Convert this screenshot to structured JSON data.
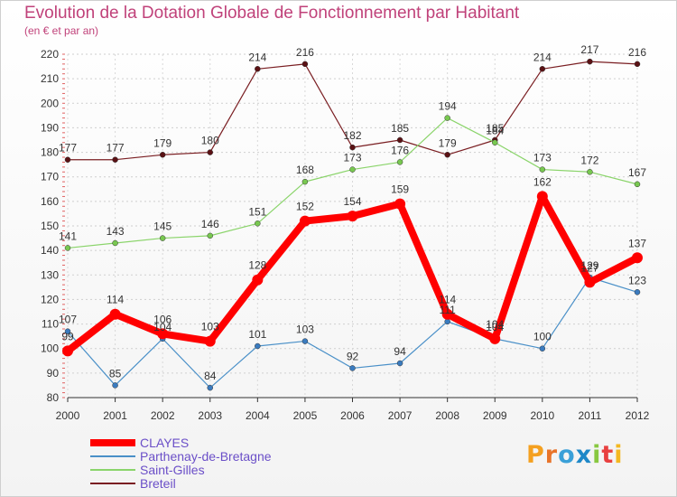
{
  "title": "Evolution de la Dotation Globale de Fonctionnement par Habitant",
  "subtitle": "(en € et par an)",
  "chart_data": {
    "type": "line",
    "title": "Evolution de la Dotation Globale de Fonctionnement par Habitant",
    "subtitle": "(en € et par an)",
    "xlabel": "",
    "ylabel": "",
    "x": [
      "2000",
      "2001",
      "2002",
      "2003",
      "2004",
      "2005",
      "2006",
      "2007",
      "2008",
      "2009",
      "2010",
      "2011",
      "2012"
    ],
    "ylim": [
      80,
      220
    ],
    "yticks": [
      80,
      90,
      100,
      110,
      120,
      130,
      140,
      150,
      160,
      170,
      180,
      190,
      200,
      210,
      220
    ],
    "grid": true,
    "legend": "bottom-left",
    "series": [
      {
        "name": "Breteil",
        "color": "#7a1e22",
        "marker": "#5a1114",
        "width": 1.2,
        "values": [
          177,
          177,
          179,
          180,
          214,
          216,
          182,
          185,
          179,
          185,
          214,
          217,
          216
        ]
      },
      {
        "name": "Saint-Gilles",
        "color": "#8ad46a",
        "marker": "#78c850",
        "width": 1.2,
        "values": [
          141,
          143,
          145,
          146,
          151,
          168,
          173,
          176,
          194,
          184,
          173,
          172,
          167
        ]
      },
      {
        "name": "Parthenay-de-Bretagne",
        "color": "#4a90c8",
        "marker": "#3a7bbf",
        "width": 1.2,
        "values": [
          107,
          85,
          104,
          84,
          101,
          103,
          92,
          94,
          111,
          104,
          100,
          129,
          123
        ]
      },
      {
        "name": "CLAYES",
        "color": "#ff0000",
        "marker": "#ff0000",
        "width": 8,
        "values": [
          99,
          114,
          106,
          103,
          128,
          152,
          154,
          159,
          114,
          104,
          162,
          127,
          137
        ]
      }
    ]
  },
  "legend": [
    {
      "label": "CLAYES",
      "color": "#ff0000",
      "text_color": "#6b4fc8",
      "thickness": 8
    },
    {
      "label": "Parthenay-de-Bretagne",
      "color": "#4a90c8",
      "text_color": "#6b4fc8",
      "thickness": 2
    },
    {
      "label": "Saint-Gilles",
      "color": "#8ad46a",
      "text_color": "#6b4fc8",
      "thickness": 2
    },
    {
      "label": "Breteil",
      "color": "#7a1e22",
      "text_color": "#6b4fc8",
      "thickness": 2
    }
  ],
  "logo": {
    "letters": [
      "P",
      "r",
      "o",
      "x",
      "i",
      "t",
      "i"
    ],
    "colors": [
      "#f4a020",
      "#e8742a",
      "#3aa0d8",
      "#1e88c8",
      "#88c840",
      "#e84040",
      "#f4b820"
    ]
  }
}
